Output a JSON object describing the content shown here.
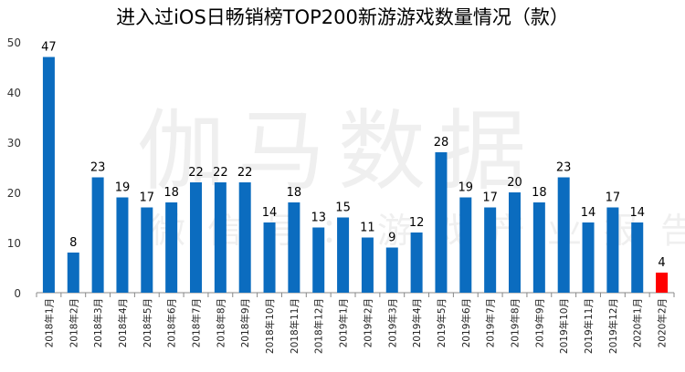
{
  "title": "进入过iOS日畅销榜TOP200新游游戏数量情况（款）",
  "watermark": {
    "main": "伽马数据",
    "sub": "微信号：游戏产业报告"
  },
  "colors": {
    "bar": "#0b6cbf",
    "highlight": "#ff0000",
    "axis": "#888888"
  },
  "chart_data": {
    "type": "bar",
    "title": "进入过iOS日畅销榜TOP200新游游戏数量情况（款）",
    "xlabel": "",
    "ylabel": "",
    "ylim": [
      0,
      50
    ],
    "yticks": [
      0,
      10,
      20,
      30,
      40,
      50
    ],
    "grid": false,
    "categories": [
      "2018年1月",
      "2018年2月",
      "2018年3月",
      "2018年4月",
      "2018年5月",
      "2018年6月",
      "2018年7月",
      "2018年8月",
      "2018年9月",
      "2018年10月",
      "2018年11月",
      "2018年12月",
      "2019年1月",
      "2019年2月",
      "2019年3月",
      "2019年4月",
      "2019年5月",
      "2019年6月",
      "2019年7月",
      "2019年8月",
      "2019年9月",
      "2019年10月",
      "2019年11月",
      "2019年12月",
      "2020年1月",
      "2020年2月"
    ],
    "values": [
      47,
      8,
      23,
      19,
      17,
      18,
      22,
      22,
      22,
      14,
      18,
      13,
      15,
      11,
      9,
      12,
      28,
      19,
      17,
      20,
      18,
      23,
      14,
      17,
      14,
      4
    ],
    "highlight_index": 25
  }
}
